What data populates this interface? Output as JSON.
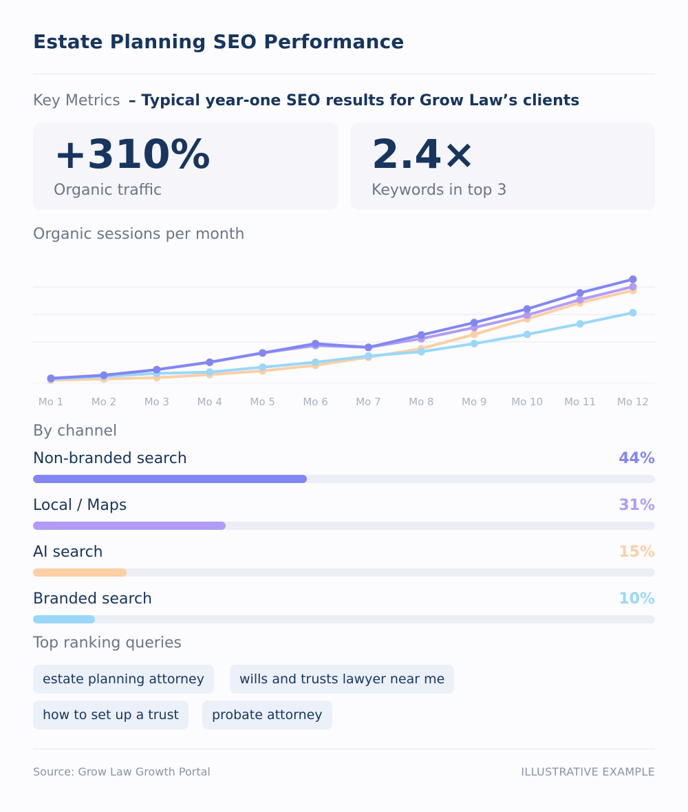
{
  "page": {
    "title": "Estate Planning SEO Performance"
  },
  "metrics": {
    "label": "Key Metrics",
    "subtitle": "– Typical year-one SEO results for Grow Law’s clients",
    "cards": [
      {
        "value": "+310%",
        "label": "Organic traffic"
      },
      {
        "value": "2.4×",
        "label": "Keywords in top 3"
      }
    ]
  },
  "chart_data": {
    "type": "line",
    "title": "Organic sessions per month",
    "xlabel": "",
    "ylabel": "",
    "categories": [
      "Mo 1",
      "Mo 2",
      "Mo 3",
      "Mo 4",
      "Mo 5",
      "Mo 6",
      "Mo 7",
      "Mo 8",
      "Mo 9",
      "Mo 10",
      "Mo 11",
      "Mo 12"
    ],
    "series": [
      {
        "color": "#8286f2",
        "values": [
          4,
          6.5,
          11,
          17,
          24.5,
          32,
          29,
          39,
          49,
          60,
          73,
          84
        ]
      },
      {
        "color": "#b09cf6",
        "values": [
          4,
          6.5,
          11,
          17,
          24.5,
          30.5,
          29,
          36,
          45,
          55,
          67.5,
          78
        ]
      },
      {
        "color": "#fccfa4",
        "values": [
          2.5,
          3.5,
          4.5,
          7,
          10,
          14.5,
          21,
          28,
          39.5,
          52,
          65,
          75
        ]
      },
      {
        "color": "#9ad7fb",
        "values": [
          3.5,
          5.5,
          8,
          9,
          13,
          17,
          22,
          25.5,
          32,
          39.5,
          48,
          57
        ]
      }
    ],
    "ylim": [
      0,
      100
    ],
    "grid": true,
    "legend": "none"
  },
  "channels": {
    "label": "By channel",
    "items": [
      {
        "name": "Non-branded search",
        "pct_label": "44%",
        "value": 0.44,
        "color": "#8286f2"
      },
      {
        "name": "Local / Maps",
        "pct_label": "31%",
        "value": 0.31,
        "color": "#b09cf6"
      },
      {
        "name": "AI search",
        "pct_label": "15%",
        "value": 0.15,
        "color": "#fccfa4"
      },
      {
        "name": "Branded search",
        "pct_label": "10%",
        "value": 0.1,
        "color": "#9ad7fb"
      }
    ]
  },
  "queries": {
    "label": "Top ranking queries",
    "items": [
      "estate planning attorney",
      "wills and trusts lawyer near me",
      "how to set up a trust",
      "probate attorney"
    ]
  },
  "footer": {
    "source": "Source: Grow Law Growth Portal",
    "note": "ILLUSTRATIVE EXAMPLE"
  }
}
